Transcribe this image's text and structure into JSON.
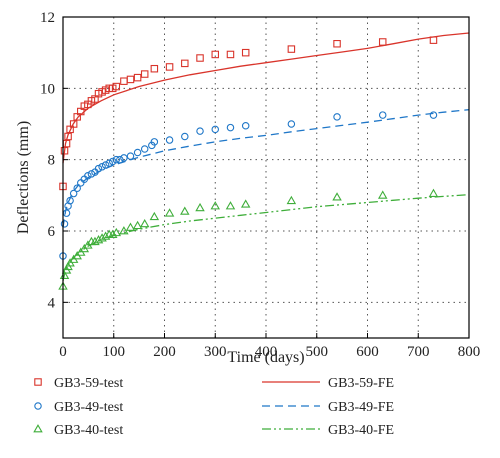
{
  "chart_data": {
    "type": "scatter",
    "title": "",
    "xlabel": "Time (days)",
    "ylabel": "Deflections (mm)",
    "xlim": [
      0,
      800
    ],
    "ylim": [
      3,
      12
    ],
    "xticks": [
      0,
      100,
      200,
      300,
      400,
      500,
      600,
      700,
      800
    ],
    "yticks": [
      4,
      6,
      8,
      10,
      12
    ],
    "grid": "dotted",
    "legend_position": "bottom",
    "series": [
      {
        "name": "GB3-59-test",
        "kind": "markers",
        "marker": "square",
        "color": "#d9342b",
        "x": [
          0,
          3,
          7,
          10,
          14,
          21,
          28,
          35,
          42,
          49,
          56,
          63,
          70,
          77,
          84,
          91,
          98,
          105,
          120,
          133,
          147,
          161,
          180,
          210,
          240,
          270,
          300,
          330,
          360,
          450,
          540,
          630,
          730
        ],
        "y": [
          7.25,
          8.25,
          8.45,
          8.65,
          8.85,
          9.0,
          9.2,
          9.35,
          9.5,
          9.55,
          9.65,
          9.7,
          9.85,
          9.9,
          9.95,
          10.0,
          10.0,
          10.05,
          10.2,
          10.25,
          10.3,
          10.4,
          10.55,
          10.6,
          10.7,
          10.85,
          10.95,
          10.95,
          11.0,
          11.1,
          11.25,
          11.3,
          11.35
        ]
      },
      {
        "name": "GB3-49-test",
        "kind": "markers",
        "marker": "circle",
        "color": "#1f77c8",
        "x": [
          0,
          3,
          7,
          10,
          14,
          21,
          28,
          35,
          42,
          49,
          56,
          63,
          70,
          77,
          84,
          91,
          98,
          105,
          112,
          120,
          133,
          147,
          161,
          175,
          180,
          210,
          240,
          270,
          300,
          330,
          360,
          450,
          540,
          630,
          730
        ],
        "y": [
          5.3,
          6.2,
          6.5,
          6.7,
          6.85,
          7.05,
          7.2,
          7.35,
          7.45,
          7.55,
          7.6,
          7.65,
          7.75,
          7.8,
          7.85,
          7.9,
          7.95,
          8.0,
          8.0,
          8.05,
          8.1,
          8.2,
          8.3,
          8.4,
          8.5,
          8.55,
          8.65,
          8.8,
          8.85,
          8.9,
          8.95,
          9.0,
          9.2,
          9.25,
          9.25
        ]
      },
      {
        "name": "GB3-40-test",
        "kind": "markers",
        "marker": "triangle",
        "color": "#3fae3a",
        "x": [
          0,
          3,
          7,
          10,
          14,
          21,
          28,
          35,
          42,
          49,
          56,
          63,
          70,
          77,
          84,
          91,
          98,
          105,
          120,
          133,
          147,
          161,
          180,
          210,
          240,
          270,
          300,
          330,
          360,
          450,
          540,
          630,
          730
        ],
        "y": [
          4.45,
          4.75,
          4.9,
          5.0,
          5.1,
          5.2,
          5.3,
          5.4,
          5.5,
          5.6,
          5.7,
          5.7,
          5.75,
          5.8,
          5.85,
          5.9,
          5.9,
          5.95,
          6.0,
          6.1,
          6.15,
          6.2,
          6.4,
          6.5,
          6.55,
          6.65,
          6.7,
          6.7,
          6.75,
          6.85,
          6.95,
          7.0,
          7.05
        ]
      },
      {
        "name": "GB3-59-FE",
        "kind": "line",
        "dash": "solid",
        "color": "#d9342b",
        "x": [
          0,
          5,
          10,
          20,
          30,
          50,
          75,
          100,
          150,
          200,
          250,
          300,
          350,
          400,
          450,
          500,
          550,
          600,
          650,
          700,
          750,
          800
        ],
        "y": [
          7.9,
          8.45,
          8.7,
          9.0,
          9.2,
          9.45,
          9.65,
          9.82,
          10.05,
          10.23,
          10.38,
          10.5,
          10.62,
          10.72,
          10.82,
          10.92,
          11.02,
          11.12,
          11.25,
          11.38,
          11.48,
          11.55
        ]
      },
      {
        "name": "GB3-49-FE",
        "kind": "line",
        "dash": "dashed",
        "color": "#1f77c8",
        "x": [
          0,
          5,
          10,
          20,
          30,
          50,
          75,
          100,
          150,
          200,
          250,
          300,
          350,
          400,
          450,
          500,
          550,
          600,
          650,
          700,
          750,
          800
        ],
        "y": [
          6.1,
          6.55,
          6.8,
          7.1,
          7.28,
          7.5,
          7.7,
          7.85,
          8.07,
          8.25,
          8.38,
          8.5,
          8.6,
          8.68,
          8.78,
          8.87,
          8.96,
          9.05,
          9.15,
          9.25,
          9.33,
          9.4
        ]
      },
      {
        "name": "GB3-40-FE",
        "kind": "line",
        "dash": "dashdot",
        "color": "#3fae3a",
        "x": [
          0,
          5,
          10,
          20,
          30,
          50,
          75,
          100,
          150,
          200,
          250,
          300,
          350,
          400,
          450,
          500,
          550,
          600,
          650,
          700,
          750,
          800
        ],
        "y": [
          4.6,
          4.9,
          5.05,
          5.25,
          5.38,
          5.58,
          5.75,
          5.88,
          6.05,
          6.18,
          6.28,
          6.36,
          6.44,
          6.52,
          6.6,
          6.68,
          6.74,
          6.8,
          6.86,
          6.92,
          6.97,
          7.02
        ]
      }
    ],
    "legend": [
      {
        "label": "GB3-59-test"
      },
      {
        "label": "GB3-59-FE"
      },
      {
        "label": "GB3-49-test"
      },
      {
        "label": "GB3-49-FE"
      },
      {
        "label": "GB3-40-test"
      },
      {
        "label": "GB3-40-FE"
      }
    ]
  }
}
